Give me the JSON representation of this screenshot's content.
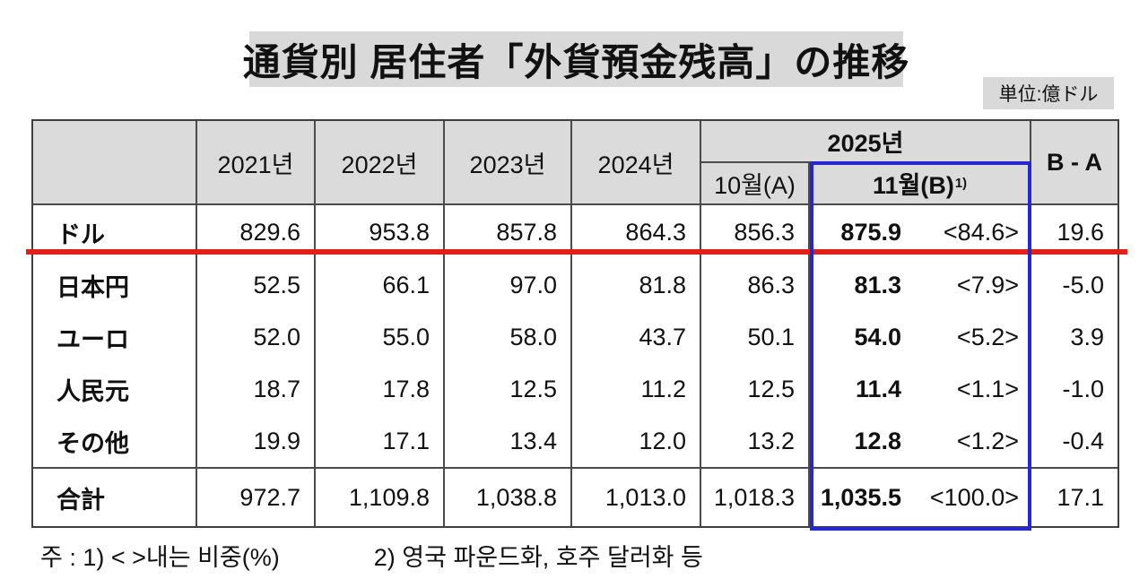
{
  "title": "通貨別 居住者「外貨預金残高」の推移",
  "unit_label": "単位:億ドル",
  "colors": {
    "accent_red": "#e0201c",
    "accent_blue": "#2727d0",
    "header_bg": "#dbdbdb",
    "title_bg": "#d9d9d9"
  },
  "table": {
    "corner_label": "",
    "year_headers": [
      "2021년",
      "2022년",
      "2023년",
      "2024년"
    ],
    "group_2025": {
      "label": "2025년",
      "col_a": "10월(A)",
      "col_b": "11월(B)",
      "col_b_sup": "1)"
    },
    "diff_header": "B - A",
    "rows": [
      {
        "label": "ドル",
        "values": [
          "829.6",
          "953.8",
          "857.8",
          "864.3",
          "856.3"
        ],
        "nov": "875.9",
        "share": "<84.6>",
        "diff": "19.6"
      },
      {
        "label": "日本円",
        "values": [
          "52.5",
          "66.1",
          "97.0",
          "81.8",
          "86.3"
        ],
        "nov": "81.3",
        "share": "<7.9>",
        "diff": "-5.0"
      },
      {
        "label": "ユーロ",
        "values": [
          "52.0",
          "55.0",
          "58.0",
          "43.7",
          "50.1"
        ],
        "nov": "54.0",
        "share": "<5.2>",
        "diff": "3.9"
      },
      {
        "label": "人民元",
        "values": [
          "18.7",
          "17.8",
          "12.5",
          "11.2",
          "12.5"
        ],
        "nov": "11.4",
        "share": "<1.1>",
        "diff": "-1.0"
      },
      {
        "label": "その他",
        "values": [
          "19.9",
          "17.1",
          "13.4",
          "12.0",
          "13.2"
        ],
        "nov": "12.8",
        "share": "<1.2>",
        "diff": "-0.4"
      }
    ],
    "total_row": {
      "label": "合計",
      "values": [
        "972.7",
        "1,109.8",
        "1,038.8",
        "1,013.0",
        "1,018.3"
      ],
      "nov": "1,035.5",
      "share": "<100.0>",
      "diff": "17.1"
    }
  },
  "footnote": {
    "part1": "주 : 1) <  >내는 비중(%)",
    "part2": "2) 영국 파운드화, 호주 달러화 등"
  },
  "chart_data": {
    "type": "table",
    "title": "通貨別 居住者「外貨預金残高」の推移",
    "unit": "億ドル",
    "columns": [
      "",
      "2021년",
      "2022년",
      "2023년",
      "2024년",
      "2025년 10월(A)",
      "2025년 11월(B)",
      "11월 비중(%)",
      "B - A"
    ],
    "rows": [
      [
        "ドル",
        829.6,
        953.8,
        857.8,
        864.3,
        856.3,
        875.9,
        84.6,
        19.6
      ],
      [
        "日本円",
        52.5,
        66.1,
        97.0,
        81.8,
        86.3,
        81.3,
        7.9,
        -5.0
      ],
      [
        "ユーロ",
        52.0,
        55.0,
        58.0,
        43.7,
        50.1,
        54.0,
        5.2,
        3.9
      ],
      [
        "人民元",
        18.7,
        17.8,
        12.5,
        11.2,
        12.5,
        11.4,
        1.1,
        -1.0
      ],
      [
        "その他",
        19.9,
        17.1,
        13.4,
        12.0,
        13.2,
        12.8,
        1.2,
        -0.4
      ],
      [
        "合計",
        972.7,
        1109.8,
        1038.8,
        1013.0,
        1018.3,
        1035.5,
        100.0,
        17.1
      ]
    ],
    "notes": [
      "1) <  >내는 비중(%)",
      "2) 영국 파운드화, 호주 달러화 등"
    ]
  }
}
